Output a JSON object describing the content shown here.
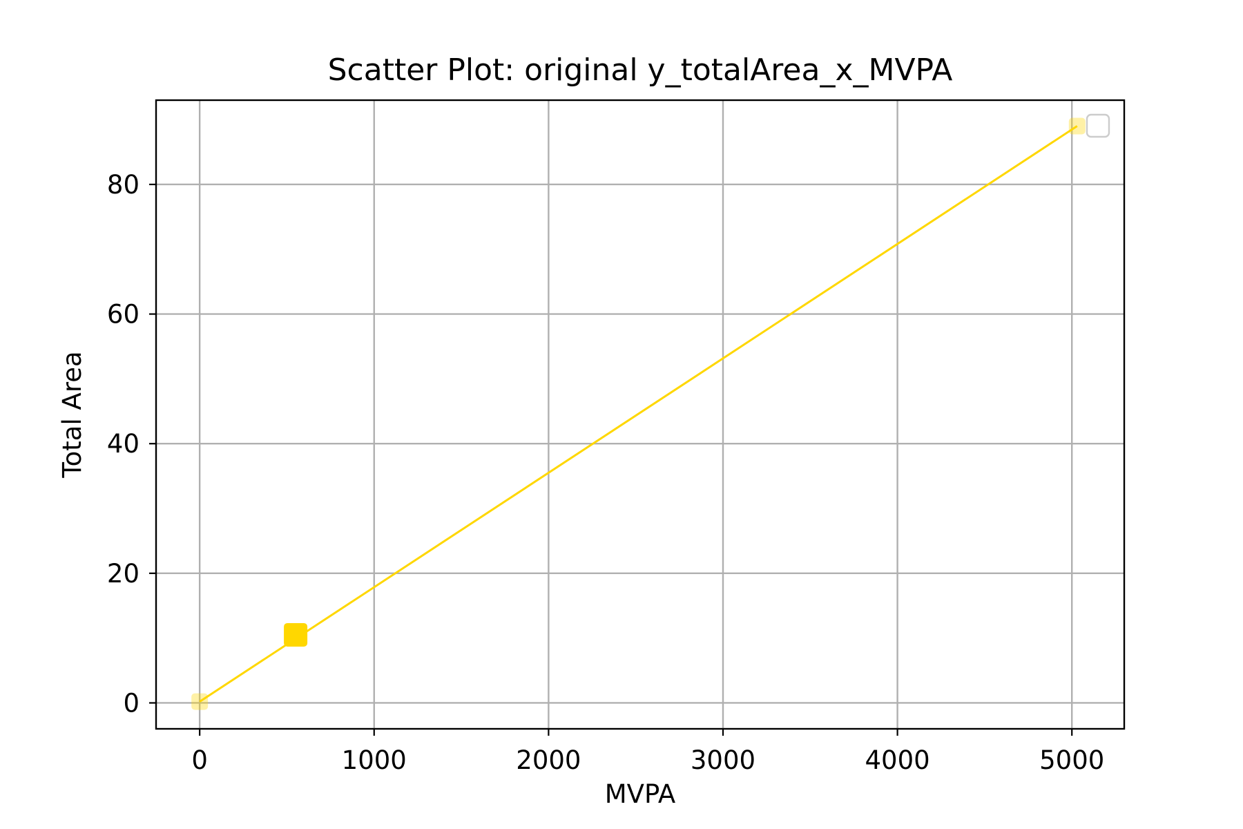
{
  "chart_data": {
    "type": "scatter",
    "title": "Scatter Plot: original y_totalArea_x_MVPA",
    "xlabel": "MVPA",
    "ylabel": "Total Area",
    "xlim": [
      -250,
      5300
    ],
    "ylim": [
      -4,
      93
    ],
    "xticks": [
      0,
      1000,
      2000,
      3000,
      4000,
      5000
    ],
    "xtick_labels": [
      "0",
      "1000",
      "2000",
      "3000",
      "4000",
      "5000"
    ],
    "yticks": [
      0,
      20,
      40,
      60,
      80
    ],
    "ytick_labels": [
      "0",
      "20",
      "40",
      "60",
      "80"
    ],
    "grid": true,
    "legend": "top-right (empty)",
    "marker": "square",
    "color": "#FFD700",
    "points": [
      {
        "x": 0,
        "y": 0.2,
        "opacity": 0.35,
        "size": "small"
      },
      {
        "x": 550,
        "y": 10.5,
        "opacity": 1.0,
        "size": "large"
      },
      {
        "x": 5030,
        "y": 89,
        "opacity": 0.35,
        "size": "small"
      }
    ],
    "fit_line": {
      "x": [
        0,
        5030
      ],
      "y": [
        0.2,
        89
      ],
      "color": "#FFD700"
    }
  }
}
